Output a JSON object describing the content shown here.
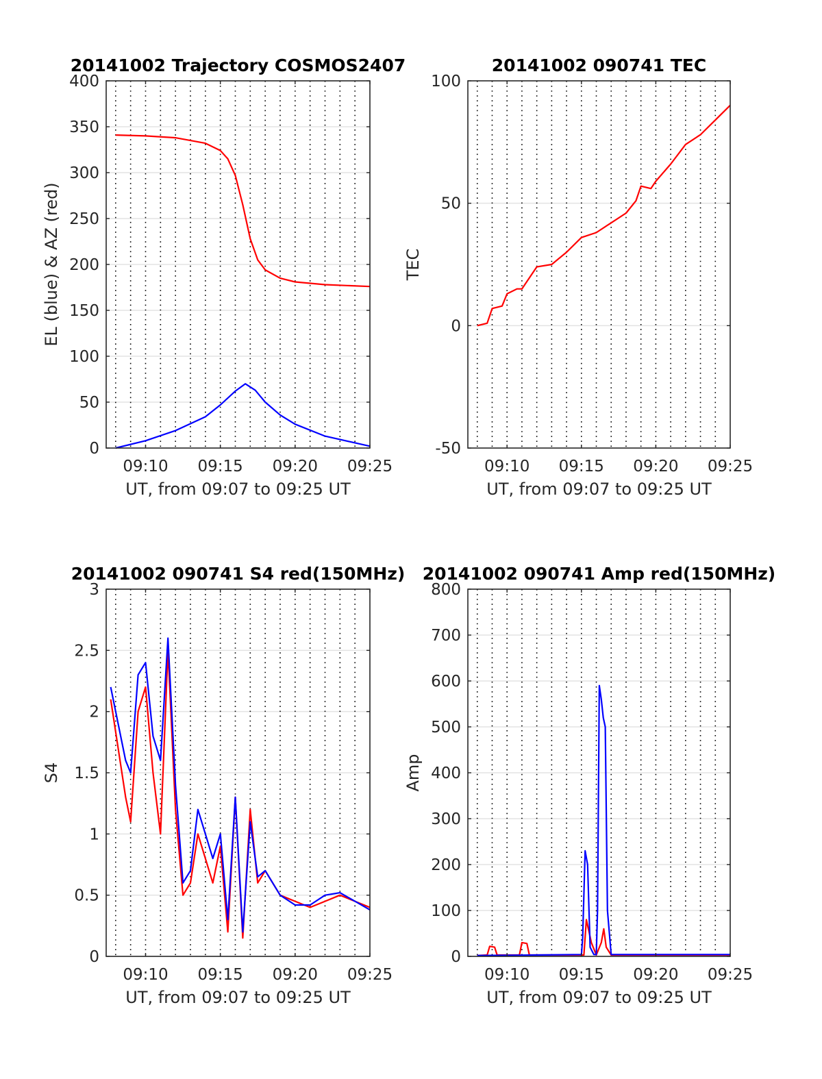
{
  "chart_data": [
    {
      "type": "line",
      "title": "20141002 Trajectory COSMOS2407",
      "xlabel": "UT, from 09:07 to 09:25 UT",
      "ylabel": "EL (blue) & AZ (red)",
      "xlim": [
        "09:07:22",
        "09:25:00"
      ],
      "ylim": [
        0,
        400
      ],
      "xticks": [
        "09:10",
        "09:15",
        "09:20",
        "09:25"
      ],
      "yticks": [
        0,
        50,
        100,
        150,
        200,
        250,
        300,
        350,
        400
      ],
      "grid": {
        "vertical": "dotted-minute",
        "horizontal": "light-solid"
      },
      "series": [
        {
          "color": "#ff0000",
          "x": [
            "09:08",
            "09:10",
            "09:12",
            "09:14",
            "09:15",
            "09:15:30",
            "09:16",
            "09:16:30",
            "09:17",
            "09:17:30",
            "09:18",
            "09:19",
            "09:20",
            "09:22",
            "09:25"
          ],
          "y": [
            341,
            340,
            338,
            332,
            324,
            315,
            297,
            265,
            228,
            205,
            194,
            185,
            181,
            178,
            176
          ]
        },
        {
          "color": "#0000ff",
          "x": [
            "09:08",
            "09:10",
            "09:12",
            "09:14",
            "09:15",
            "09:16",
            "09:16:40",
            "09:17:20",
            "09:18",
            "09:19",
            "09:20",
            "09:22",
            "09:25"
          ],
          "y": [
            0,
            8,
            19,
            34,
            47,
            62,
            70,
            63,
            50,
            36,
            26,
            13,
            2
          ]
        }
      ]
    },
    {
      "type": "line",
      "title": "20141002 090741 TEC",
      "xlabel": "UT, from 09:07 to 09:25 UT",
      "ylabel": "TEC",
      "xlim": [
        "09:07:22",
        "09:25:00"
      ],
      "ylim": [
        -50,
        100
      ],
      "xticks": [
        "09:10",
        "09:15",
        "09:20",
        "09:25"
      ],
      "yticks": [
        -50,
        0,
        50,
        100
      ],
      "grid": {
        "vertical": "dotted-minute",
        "horizontal": "light-solid"
      },
      "series": [
        {
          "color": "#ff0000",
          "x": [
            "09:08",
            "09:08:40",
            "09:09",
            "09:09:40",
            "09:10",
            "09:10:40",
            "09:11",
            "09:11:40",
            "09:12",
            "09:13",
            "09:14",
            "09:15",
            "09:16",
            "09:17",
            "09:18",
            "09:18:40",
            "09:19",
            "09:19:40",
            "09:20",
            "09:21",
            "09:22",
            "09:23",
            "09:24",
            "09:25"
          ],
          "y": [
            0,
            1,
            7,
            8,
            13,
            15,
            15,
            21,
            24,
            25,
            30,
            36,
            38,
            42,
            46,
            51,
            57,
            56,
            59,
            66,
            74,
            78,
            84,
            90
          ]
        }
      ]
    },
    {
      "type": "line",
      "title": "20141002 090741 S4 red(150MHz)",
      "xlabel": "UT, from 09:07 to 09:25 UT",
      "ylabel": "S4",
      "xlim": [
        "09:07:22",
        "09:25:00"
      ],
      "ylim": [
        0,
        3
      ],
      "xticks": [
        "09:10",
        "09:15",
        "09:20",
        "09:25"
      ],
      "yticks": [
        0,
        0.5,
        1,
        1.5,
        2,
        2.5,
        3
      ],
      "grid": {
        "vertical": "dotted-minute",
        "horizontal": "light-solid"
      },
      "series": [
        {
          "color": "#ff0000",
          "x": [
            "09:07:40",
            "09:08:40",
            "09:09",
            "09:09:30",
            "09:10",
            "09:10:30",
            "09:11",
            "09:11:30",
            "09:12",
            "09:12:30",
            "09:13",
            "09:13:30",
            "09:14",
            "09:14:30",
            "09:15",
            "09:15:30",
            "09:16",
            "09:16:30",
            "09:17",
            "09:17:30",
            "09:18",
            "09:19",
            "09:20",
            "09:21",
            "09:22",
            "09:23",
            "09:24",
            "09:25"
          ],
          "y": [
            2.1,
            1.3,
            1.1,
            2.0,
            2.2,
            1.5,
            1.0,
            2.5,
            1.2,
            0.5,
            0.6,
            1.0,
            0.8,
            0.6,
            0.9,
            0.2,
            1.3,
            0.15,
            1.2,
            0.6,
            0.7,
            0.5,
            0.45,
            0.4,
            0.45,
            0.5,
            0.45,
            0.4
          ]
        },
        {
          "color": "#0000ff",
          "x": [
            "09:07:40",
            "09:08:40",
            "09:09",
            "09:09:30",
            "09:10",
            "09:10:30",
            "09:11",
            "09:11:30",
            "09:12",
            "09:12:30",
            "09:13",
            "09:13:30",
            "09:14",
            "09:14:30",
            "09:15",
            "09:15:30",
            "09:16",
            "09:16:30",
            "09:17",
            "09:17:30",
            "09:18",
            "09:19",
            "09:20",
            "09:21",
            "09:22",
            "09:23",
            "09:24",
            "09:25"
          ],
          "y": [
            2.2,
            1.6,
            1.5,
            2.3,
            2.4,
            1.8,
            1.6,
            2.6,
            1.4,
            0.6,
            0.7,
            1.2,
            1.0,
            0.8,
            1.0,
            0.3,
            1.3,
            0.2,
            1.1,
            0.65,
            0.7,
            0.5,
            0.42,
            0.42,
            0.5,
            0.52,
            0.45,
            0.38
          ]
        }
      ]
    },
    {
      "type": "line",
      "title": "20141002 090741 Amp red(150MHz)",
      "xlabel": "UT, from 09:07 to 09:25 UT",
      "ylabel": "Amp",
      "xlim": [
        "09:07:22",
        "09:25:00"
      ],
      "ylim": [
        0,
        800
      ],
      "xticks": [
        "09:10",
        "09:15",
        "09:20",
        "09:25"
      ],
      "yticks": [
        0,
        100,
        200,
        300,
        400,
        500,
        600,
        700,
        800
      ],
      "grid": {
        "vertical": "dotted-minute",
        "horizontal": "light-solid"
      },
      "series": [
        {
          "color": "#ff0000",
          "x": [
            "09:08",
            "09:08:40",
            "09:08:50",
            "09:09:10",
            "09:09:20",
            "09:10:50",
            "09:11",
            "09:11:20",
            "09:11:30",
            "09:15:10",
            "09:15:20",
            "09:15:40",
            "09:16",
            "09:16:20",
            "09:16:30",
            "09:16:40",
            "09:17",
            "09:20",
            "09:25"
          ],
          "y": [
            2,
            3,
            22,
            20,
            3,
            3,
            30,
            28,
            3,
            3,
            80,
            30,
            3,
            30,
            60,
            20,
            3,
            3,
            3
          ]
        },
        {
          "color": "#0000ff",
          "x": [
            "09:08",
            "09:12",
            "09:15",
            "09:15:05",
            "09:15:15",
            "09:15:25",
            "09:15:35",
            "09:15:50",
            "09:16",
            "09:16:05",
            "09:16:12",
            "09:16:20",
            "09:16:28",
            "09:16:36",
            "09:16:45",
            "09:17",
            "09:20",
            "09:25"
          ],
          "y": [
            2,
            3,
            4,
            40,
            230,
            200,
            20,
            4,
            4,
            100,
            590,
            560,
            520,
            500,
            100,
            4,
            4,
            4
          ]
        }
      ]
    }
  ]
}
